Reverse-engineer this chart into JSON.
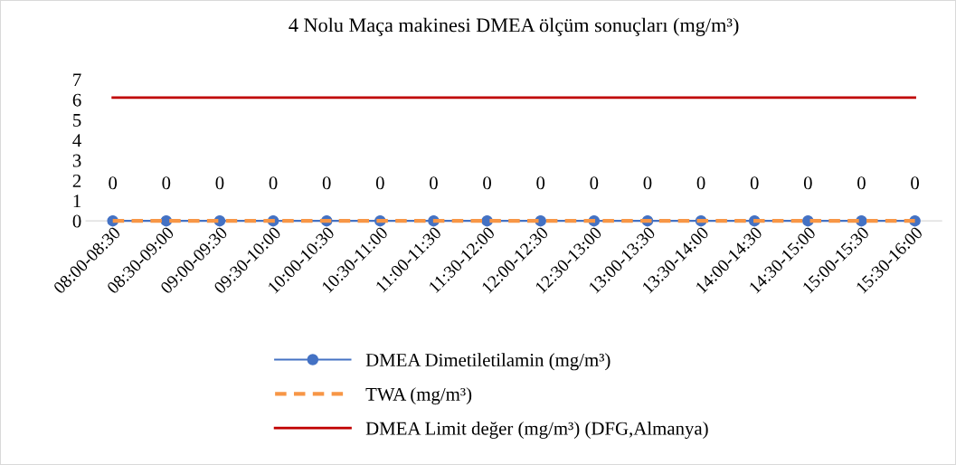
{
  "chart_data": {
    "type": "line",
    "title": "4 Nolu Maça makinesi DMEA ölçüm sonuçları (mg/m³)",
    "categories": [
      "08:00-08:30",
      "08:30-09:00",
      "09:00-09:30",
      "09:30-10:00",
      "10:00-10:30",
      "10:30-11:00",
      "11:00-11:30",
      "11:30-12:00",
      "12:00-12:30",
      "12:30-13:00",
      "13:00-13:30",
      "13:30-14:00",
      "14:00-14:30",
      "14:30-15:00",
      "15:00-15:30",
      "15:30-16:00"
    ],
    "series": [
      {
        "name": "DMEA Dimetiletilamin (mg/m³)",
        "color": "#4472c4",
        "marker": "circle",
        "line_style": "solid",
        "values": [
          0,
          0,
          0,
          0,
          0,
          0,
          0,
          0,
          0,
          0,
          0,
          0,
          0,
          0,
          0,
          0
        ],
        "value_labels": [
          "0",
          "0",
          "0",
          "0",
          "0",
          "0",
          "0",
          "0",
          "0",
          "0",
          "0",
          "0",
          "0",
          "0",
          "0",
          "0"
        ]
      },
      {
        "name": "TWA (mg/m³)",
        "color": "#f79646",
        "marker": "none",
        "line_style": "dashed",
        "values": [
          0,
          0,
          0,
          0,
          0,
          0,
          0,
          0,
          0,
          0,
          0,
          0,
          0,
          0,
          0,
          0
        ]
      },
      {
        "name": "DMEA Limit değer (mg/m³) (DFG,Almanya)",
        "color": "#c00000",
        "marker": "none",
        "line_style": "solid",
        "values": [
          6.1,
          6.1,
          6.1,
          6.1,
          6.1,
          6.1,
          6.1,
          6.1,
          6.1,
          6.1,
          6.1,
          6.1,
          6.1,
          6.1,
          6.1,
          6.1
        ]
      }
    ],
    "ylim": [
      0,
      7
    ],
    "yticks": [
      0,
      1,
      2,
      3,
      4,
      5,
      6,
      7
    ],
    "grid": false,
    "legend": "bottom"
  }
}
